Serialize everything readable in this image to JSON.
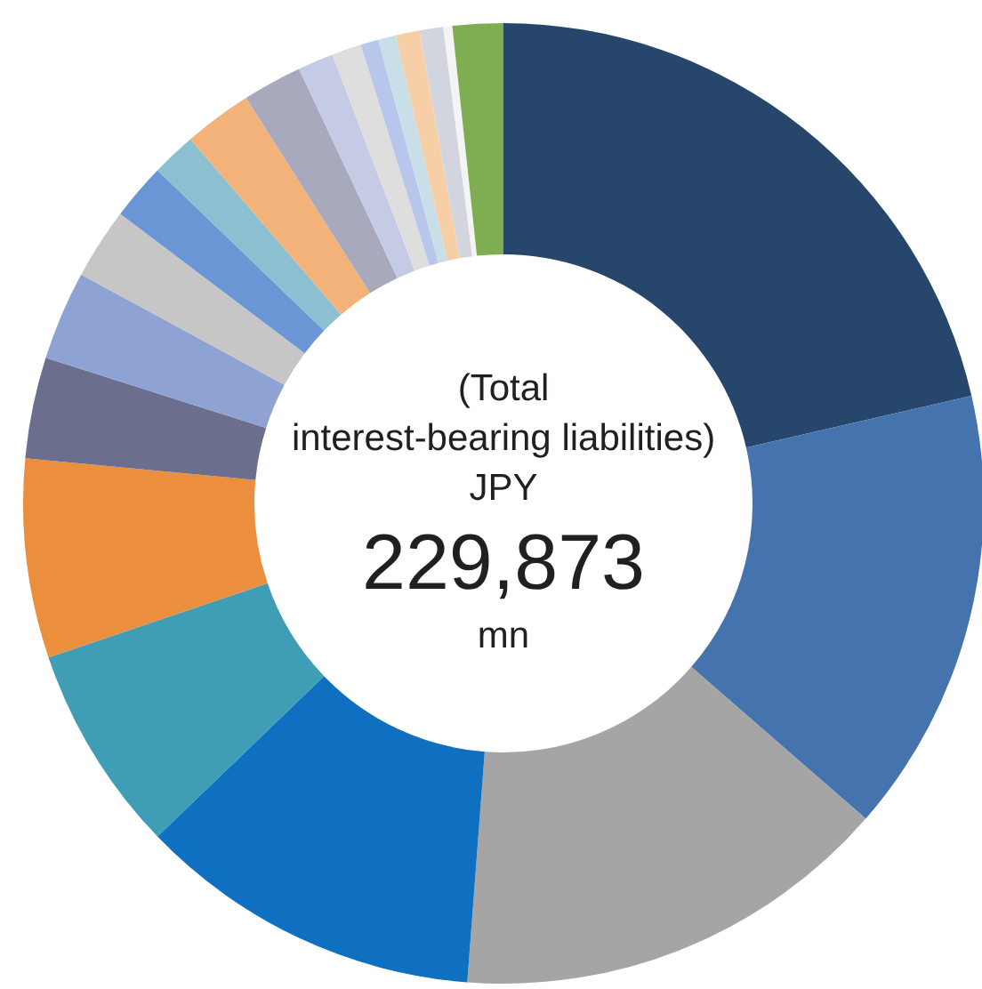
{
  "chart_data": {
    "type": "donut",
    "categories": [
      null,
      null,
      null,
      null,
      null,
      null,
      null,
      null,
      null,
      null,
      null,
      null,
      null,
      null,
      null,
      null,
      null,
      null,
      null,
      null,
      null
    ],
    "values": [
      21.4,
      15,
      14.8,
      11.6,
      7,
      6.7,
      3.4,
      3,
      2.4,
      1.9,
      1.5,
      2.3,
      2,
      1.2,
      1,
      0.6,
      0.6,
      0.8,
      0.8,
      0.3,
      1.7
    ],
    "colors": [
      "#27466b",
      "#4573ae",
      "#a5a5a5",
      "#0f6fc0",
      "#3f9db5",
      "#eb8f3e",
      "#6b6f8d",
      "#8ea3d3",
      "#c6c6c6",
      "#6a96d6",
      "#8cc0d0",
      "#f2b27a",
      "#a9a9bd",
      "#c5cbe5",
      "#dedede",
      "#b7c6ea",
      "#c9dfe8",
      "#f7cfa6",
      "#d2d5de",
      "#f4f4f4",
      "#7fad52"
    ],
    "annotations": [
      "(Total",
      "interest-bearing liabilities)",
      "JPY",
      "229,873",
      "mn"
    ]
  }
}
